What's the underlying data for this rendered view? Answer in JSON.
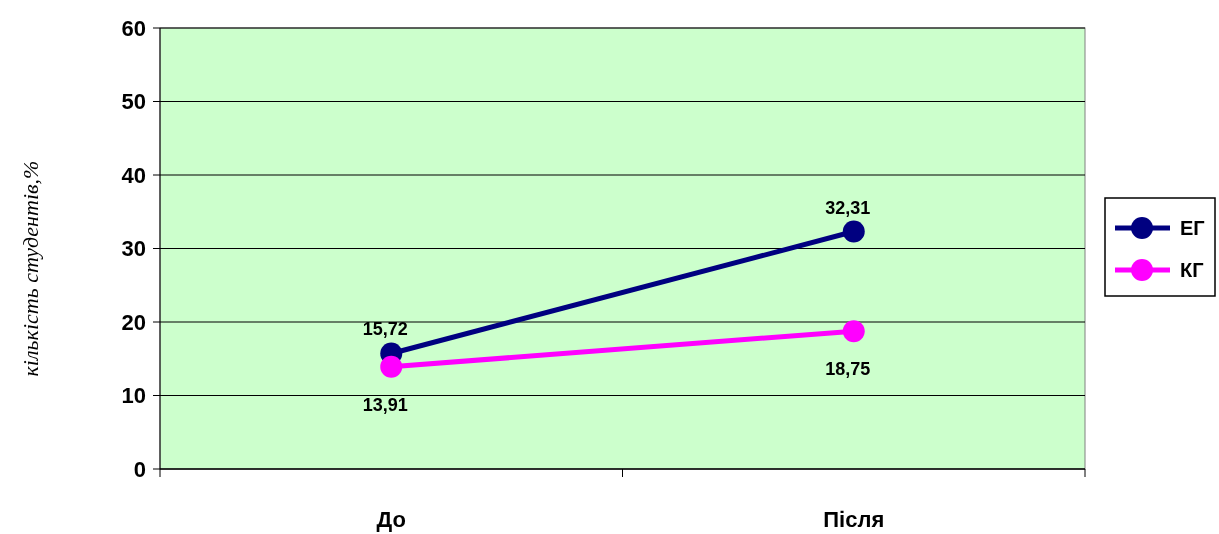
{
  "chart_data": {
    "type": "line",
    "ylabel": "кількість студентів,%",
    "categories": [
      "До",
      "Після"
    ],
    "series": [
      {
        "name": "ЕГ",
        "color": "#000080",
        "values": [
          15.72,
          32.31
        ],
        "value_labels": [
          "15,72",
          "32,31"
        ]
      },
      {
        "name": "КГ",
        "color": "#ff00ff",
        "values": [
          13.91,
          18.75
        ],
        "value_labels": [
          "13,91",
          "18,75"
        ]
      }
    ],
    "ylim": [
      0,
      60
    ],
    "yticks": [
      0,
      10,
      20,
      30,
      40,
      50,
      60
    ],
    "grid": "y",
    "legend": "right",
    "marker": "circle"
  }
}
